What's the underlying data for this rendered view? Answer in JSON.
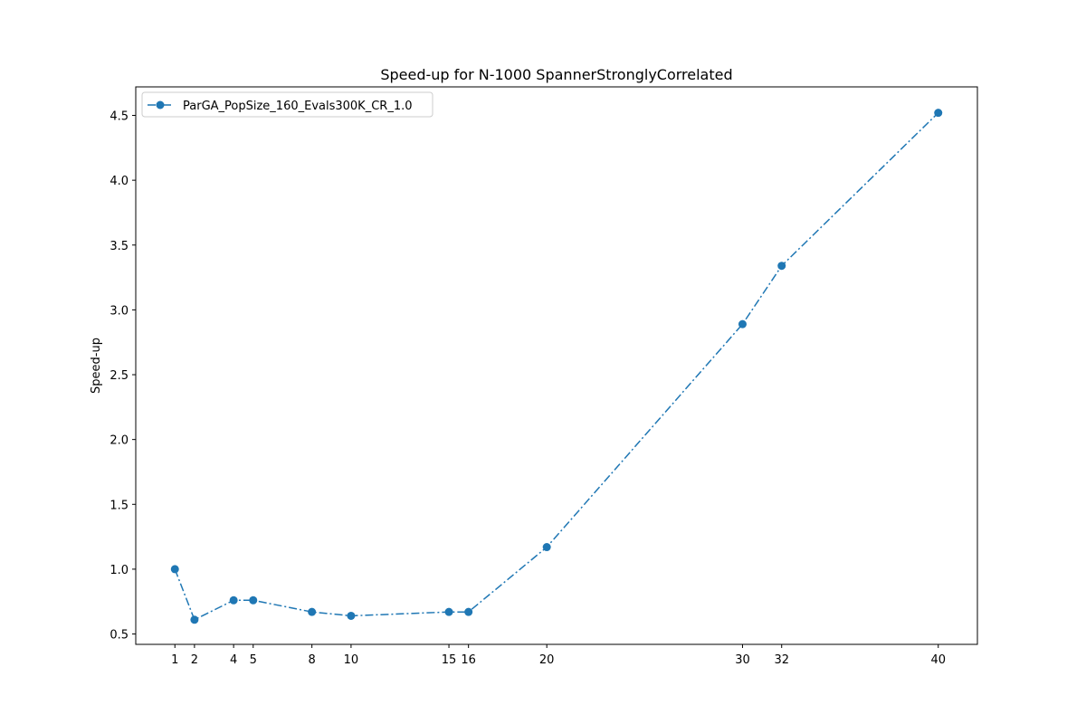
{
  "chart_data": {
    "type": "line",
    "title": "Speed-up for N-1000 SpannerStronglyCorrelated",
    "xlabel": "",
    "ylabel": "Speed-up",
    "x": [
      1,
      2,
      4,
      5,
      8,
      10,
      15,
      16,
      20,
      30,
      32,
      40
    ],
    "xticks": [
      "1",
      "2",
      "4",
      "5",
      "8",
      "10",
      "15",
      "16",
      "20",
      "30",
      "32",
      "40"
    ],
    "yticks": [
      "0.5",
      "1.0",
      "1.5",
      "2.0",
      "2.5",
      "3.0",
      "3.5",
      "4.0",
      "4.5"
    ],
    "xlim": [
      -1,
      42
    ],
    "ylim": [
      0.42,
      4.72
    ],
    "grid": false,
    "legend_position": "top-left",
    "series": [
      {
        "name": "ParGA_PopSize_160_Evals300K_CR_1.0",
        "values": [
          1.0,
          0.61,
          0.76,
          0.76,
          0.67,
          0.64,
          0.67,
          0.67,
          1.17,
          2.89,
          3.34,
          4.52
        ],
        "color": "#1f77b4",
        "line_style": "dash-dot",
        "marker": "circle"
      }
    ]
  }
}
